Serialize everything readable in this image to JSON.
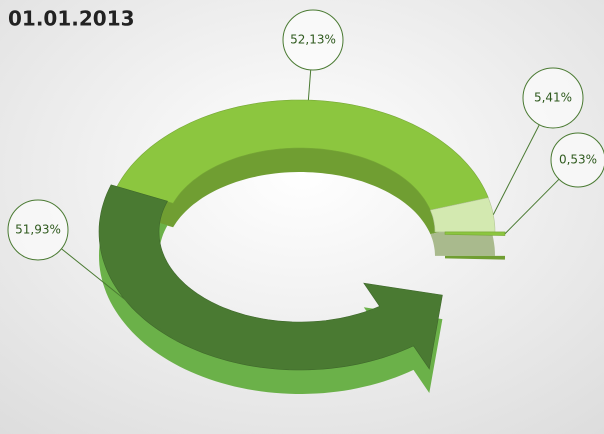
{
  "chart_data": {
    "type": "ring",
    "title": "01.01.2013",
    "categories": [
      null,
      null,
      null,
      null
    ],
    "values": [
      51.93,
      52.13,
      5.41,
      0.53
    ],
    "value_labels": [
      "51,93%",
      "52,13%",
      "5,41%",
      "0,53%"
    ],
    "colors": [
      "#4a7a32",
      "#8cc63f",
      "#d3e9b0",
      "#8cc63f"
    ]
  }
}
